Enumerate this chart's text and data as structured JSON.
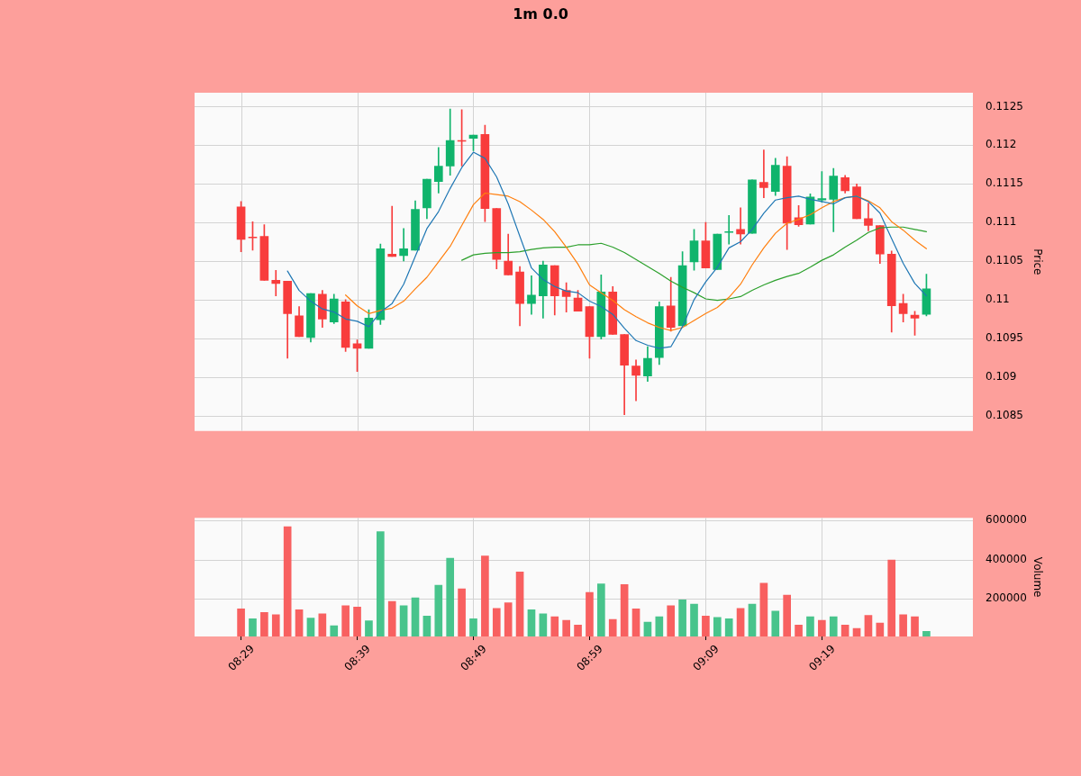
{
  "chart_data": [
    {
      "type": "candlestick",
      "title": "1m 0.0",
      "ylabel": "Price",
      "tick_labels": "y",
      "categories": [
        null,
        null,
        null,
        null,
        null,
        null,
        null,
        null,
        null,
        null,
        null,
        null,
        null,
        null,
        null,
        null,
        null,
        null,
        null,
        null,
        null,
        null,
        null,
        null,
        null,
        null,
        null,
        null,
        null,
        null,
        null,
        null,
        null,
        null,
        null,
        null,
        null,
        null,
        null,
        null,
        null,
        null,
        null,
        null,
        null,
        null,
        null,
        null,
        null,
        null,
        null,
        null,
        null,
        null,
        null,
        null,
        null,
        null,
        null,
        null
      ],
      "ohlc": [
        [
          0.1112,
          0.11127,
          0.11062,
          0.11078
        ],
        [
          0.11081,
          0.11101,
          0.11064,
          0.1108
        ],
        [
          0.11082,
          0.11097,
          0.11025,
          0.11025
        ],
        [
          0.11025,
          0.11038,
          0.11005,
          0.11021
        ],
        [
          0.11024,
          0.11024,
          0.10924,
          0.10982
        ],
        [
          0.10979,
          0.10991,
          0.10952,
          0.10952
        ],
        [
          0.10951,
          0.11008,
          0.10945,
          0.11008
        ],
        [
          0.11007,
          0.11012,
          0.10964,
          0.10975
        ],
        [
          0.10971,
          0.11007,
          0.10969,
          0.11001
        ],
        [
          0.10997,
          0.11,
          0.10933,
          0.10938
        ],
        [
          0.10943,
          0.10948,
          0.10907,
          0.10937
        ],
        [
          0.10937,
          0.10987,
          0.10937,
          0.10976
        ],
        [
          0.10974,
          0.11072,
          0.10968,
          0.11066
        ],
        [
          0.11059,
          0.11121,
          0.11056,
          0.11056
        ],
        [
          0.11057,
          0.11092,
          0.1105,
          0.11066
        ],
        [
          0.11064,
          0.11128,
          0.11064,
          0.11117
        ],
        [
          0.11119,
          0.11156,
          0.11105,
          0.11156
        ],
        [
          0.11153,
          0.11197,
          0.11138,
          0.11173
        ],
        [
          0.11173,
          0.11247,
          0.11161,
          0.11206
        ],
        [
          0.11206,
          0.11246,
          0.11173,
          0.11205
        ],
        [
          0.11209,
          0.11213,
          0.11193,
          0.11213
        ],
        [
          0.11214,
          0.11226,
          0.11101,
          0.11118
        ],
        [
          0.11118,
          0.11118,
          0.1104,
          0.11052
        ],
        [
          0.1105,
          0.11085,
          0.11032,
          0.11032
        ],
        [
          0.11036,
          0.11043,
          0.10966,
          0.10995
        ],
        [
          0.10995,
          0.11031,
          0.10981,
          0.11006
        ],
        [
          0.11005,
          0.1105,
          0.10976,
          0.11045
        ],
        [
          0.11044,
          0.11044,
          0.1098,
          0.11005
        ],
        [
          0.11012,
          0.11022,
          0.10984,
          0.11004
        ],
        [
          0.11002,
          0.11012,
          0.10985,
          0.10985
        ],
        [
          0.10991,
          0.10991,
          0.10924,
          0.10952
        ],
        [
          0.10952,
          0.11032,
          0.10949,
          0.1101
        ],
        [
          0.1101,
          0.11017,
          0.10955,
          0.10955
        ],
        [
          0.10955,
          0.10955,
          0.10851,
          0.10915
        ],
        [
          0.10914,
          0.10922,
          0.10869,
          0.10902
        ],
        [
          0.10901,
          0.10939,
          0.10894,
          0.10924
        ],
        [
          0.10925,
          0.10997,
          0.10916,
          0.10991
        ],
        [
          0.10992,
          0.11029,
          0.10959,
          0.10964
        ],
        [
          0.10966,
          0.11062,
          0.10966,
          0.11044
        ],
        [
          0.11049,
          0.11091,
          0.11038,
          0.11076
        ],
        [
          0.11076,
          0.111,
          0.11041,
          0.11041
        ],
        [
          0.11039,
          0.11085,
          0.11039,
          0.11085
        ],
        [
          0.11087,
          0.11109,
          0.11072,
          0.11088
        ],
        [
          0.11091,
          0.11119,
          0.11072,
          0.11085
        ],
        [
          0.11086,
          0.11155,
          0.11086,
          0.11155
        ],
        [
          0.11152,
          0.11194,
          0.11132,
          0.11145
        ],
        [
          0.1114,
          0.11183,
          0.11135,
          0.11174
        ],
        [
          0.11173,
          0.11185,
          0.11065,
          0.11099
        ],
        [
          0.11106,
          0.11122,
          0.11095,
          0.11097
        ],
        [
          0.11098,
          0.11137,
          0.11098,
          0.11133
        ],
        [
          0.11129,
          0.11166,
          0.11126,
          0.11131
        ],
        [
          0.1113,
          0.1117,
          0.11088,
          0.1116
        ],
        [
          0.11158,
          0.11161,
          0.11138,
          0.11141
        ],
        [
          0.11146,
          0.1115,
          0.11105,
          0.11105
        ],
        [
          0.11105,
          0.11125,
          0.11089,
          0.11096
        ],
        [
          0.11096,
          0.11096,
          0.11047,
          0.11059
        ],
        [
          0.11059,
          0.11063,
          0.10958,
          0.10992
        ],
        [
          0.10995,
          0.11007,
          0.10971,
          0.10982
        ],
        [
          0.1098,
          0.10985,
          0.10954,
          0.10976
        ],
        [
          0.10981,
          0.11033,
          0.10979,
          0.11014
        ]
      ],
      "colors": [
        "#f83c3c",
        "#f83c3c",
        "#f83c3c",
        "#f83c3c",
        "#f83c3c",
        "#f83c3c",
        "#10b46c",
        "#f83c3c",
        "#10b46c",
        "#f83c3c",
        "#f83c3c",
        "#10b46c",
        "#10b46c",
        "#f83c3c",
        "#10b46c",
        "#10b46c",
        "#10b46c",
        "#10b46c",
        "#10b46c",
        "#f83c3c",
        "#10b46c",
        "#f83c3c",
        "#f83c3c",
        "#f83c3c",
        "#f83c3c",
        "#10b46c",
        "#10b46c",
        "#f83c3c",
        "#f83c3c",
        "#f83c3c",
        "#f83c3c",
        "#10b46c",
        "#f83c3c",
        "#f83c3c",
        "#f83c3c",
        "#10b46c",
        "#10b46c",
        "#f83c3c",
        "#10b46c",
        "#10b46c",
        "#f83c3c",
        "#10b46c",
        "#10b46c",
        "#f83c3c",
        "#10b46c",
        "#f83c3c",
        "#10b46c",
        "#f83c3c",
        "#f83c3c",
        "#10b46c",
        "#10b46c",
        "#10b46c",
        "#f83c3c",
        "#f83c3c",
        "#f83c3c",
        "#f83c3c",
        "#f83c3c",
        "#f83c3c",
        "#f83c3c",
        "#10b46c"
      ],
      "series": [
        {
          "type": "line",
          "color": "#1f77b4",
          "values": [
            null,
            null,
            null,
            null,
            0.11037,
            0.11012,
            0.10998,
            0.10988,
            0.10984,
            0.10975,
            0.10972,
            0.10965,
            0.10984,
            0.10995,
            0.1102,
            0.11056,
            0.11092,
            0.11114,
            0.11144,
            0.11171,
            0.11191,
            0.11183,
            0.11159,
            0.11124,
            0.11082,
            0.11041,
            0.11026,
            0.11017,
            0.11011,
            0.11009,
            0.10998,
            0.10991,
            0.10981,
            0.10963,
            0.10947,
            0.10941,
            0.10937,
            0.10939,
            0.10965,
            0.11,
            0.11023,
            0.11042,
            0.11067,
            0.11075,
            0.11091,
            0.11112,
            0.11129,
            0.11132,
            0.11134,
            0.1113,
            0.11127,
            0.11124,
            0.11132,
            0.11134,
            0.11127,
            0.11112,
            0.11079,
            0.11047,
            0.11021,
            0.11005
          ]
        },
        {
          "type": "line",
          "color": "#ff7f0e",
          "values": [
            null,
            null,
            null,
            null,
            null,
            null,
            null,
            null,
            null,
            0.11006,
            0.10992,
            0.10982,
            0.10986,
            0.10989,
            0.10998,
            0.11014,
            0.11029,
            0.11049,
            0.11069,
            0.11096,
            0.11123,
            0.11138,
            0.11136,
            0.11134,
            0.11127,
            0.11116,
            0.11104,
            0.11088,
            0.11068,
            0.11046,
            0.11019,
            0.11009,
            0.10999,
            0.10987,
            0.10978,
            0.1097,
            0.10964,
            0.1096,
            0.10964,
            0.10973,
            0.10982,
            0.1099,
            0.11003,
            0.1102,
            0.11045,
            0.11067,
            0.11086,
            0.11099,
            0.11104,
            0.1111,
            0.11119,
            0.11127,
            0.11132,
            0.11134,
            0.11128,
            0.11119,
            0.11101,
            0.1109,
            0.11077,
            0.11066
          ]
        },
        {
          "type": "line",
          "color": "#2ca02c",
          "values": [
            null,
            null,
            null,
            null,
            null,
            null,
            null,
            null,
            null,
            null,
            null,
            null,
            null,
            null,
            null,
            null,
            null,
            null,
            null,
            0.11051,
            0.11058,
            0.1106,
            0.11061,
            0.11061,
            0.11062,
            0.11065,
            0.11067,
            0.11068,
            0.11068,
            0.11071,
            0.11071,
            0.11073,
            0.11068,
            0.11061,
            0.11052,
            0.11043,
            0.11034,
            0.11024,
            0.11016,
            0.11009,
            0.11001,
            0.10999,
            0.11001,
            0.11004,
            0.11012,
            0.11019,
            0.11025,
            0.1103,
            0.11034,
            0.11042,
            0.11051,
            0.11058,
            0.11068,
            0.11077,
            0.11087,
            0.11093,
            0.11094,
            0.11094,
            0.11091,
            0.11088
          ]
        }
      ],
      "ylim": [
        0.1083,
        0.11268
      ],
      "yticks": [
        0.1085,
        0.109,
        0.1095,
        0.11,
        0.1105,
        0.111,
        0.1115,
        0.112,
        0.1125
      ],
      "grid": true,
      "marker": "none",
      "line_style": "solid"
    },
    {
      "type": "bar",
      "ylabel": "Volume",
      "categories": [
        "08:29",
        null,
        null,
        null,
        null,
        null,
        null,
        null,
        null,
        null,
        "08:39",
        null,
        null,
        null,
        null,
        null,
        null,
        null,
        null,
        null,
        "08:49",
        null,
        null,
        null,
        null,
        null,
        null,
        null,
        null,
        null,
        "08:59",
        null,
        null,
        null,
        null,
        null,
        null,
        null,
        null,
        null,
        "09:09",
        null,
        null,
        null,
        null,
        null,
        null,
        null,
        null,
        null,
        "09:19",
        null,
        null,
        null,
        null,
        null,
        null,
        null,
        null,
        null
      ],
      "colors": [
        "#f86060",
        "#48c48c",
        "#f86060",
        "#f86060",
        "#f86060",
        "#f86060",
        "#48c48c",
        "#f86060",
        "#48c48c",
        "#f86060",
        "#f86060",
        "#48c48c",
        "#48c48c",
        "#f86060",
        "#48c48c",
        "#48c48c",
        "#48c48c",
        "#48c48c",
        "#48c48c",
        "#f86060",
        "#48c48c",
        "#f86060",
        "#f86060",
        "#f86060",
        "#f86060",
        "#48c48c",
        "#48c48c",
        "#f86060",
        "#f86060",
        "#f86060",
        "#f86060",
        "#48c48c",
        "#f86060",
        "#f86060",
        "#f86060",
        "#48c48c",
        "#48c48c",
        "#f86060",
        "#48c48c",
        "#48c48c",
        "#f86060",
        "#48c48c",
        "#48c48c",
        "#f86060",
        "#48c48c",
        "#f86060",
        "#48c48c",
        "#f86060",
        "#f86060",
        "#48c48c",
        "#f86060",
        "#48c48c",
        "#f86060",
        "#f86060",
        "#f86060",
        "#f86060",
        "#f86060",
        "#f86060",
        "#f86060",
        "#48c48c"
      ],
      "values": [
        148000,
        98000,
        130000,
        119000,
        569000,
        144000,
        101000,
        123000,
        62000,
        165000,
        158000,
        87000,
        544000,
        187000,
        165000,
        205000,
        112000,
        269000,
        408000,
        251000,
        98000,
        419000,
        151000,
        180000,
        337000,
        144000,
        123000,
        108000,
        90000,
        65000,
        233000,
        276000,
        94000,
        273000,
        148000,
        80000,
        108000,
        165000,
        194000,
        173000,
        112000,
        105000,
        98000,
        151000,
        173000,
        280000,
        137000,
        219000,
        65000,
        108000,
        90000,
        108000,
        65000,
        48000,
        115000,
        76000,
        398000,
        119000,
        108000,
        33000
      ],
      "ylim": [
        7000,
        614000
      ],
      "yticks": [
        200000,
        400000,
        600000
      ],
      "grid": true
    }
  ]
}
